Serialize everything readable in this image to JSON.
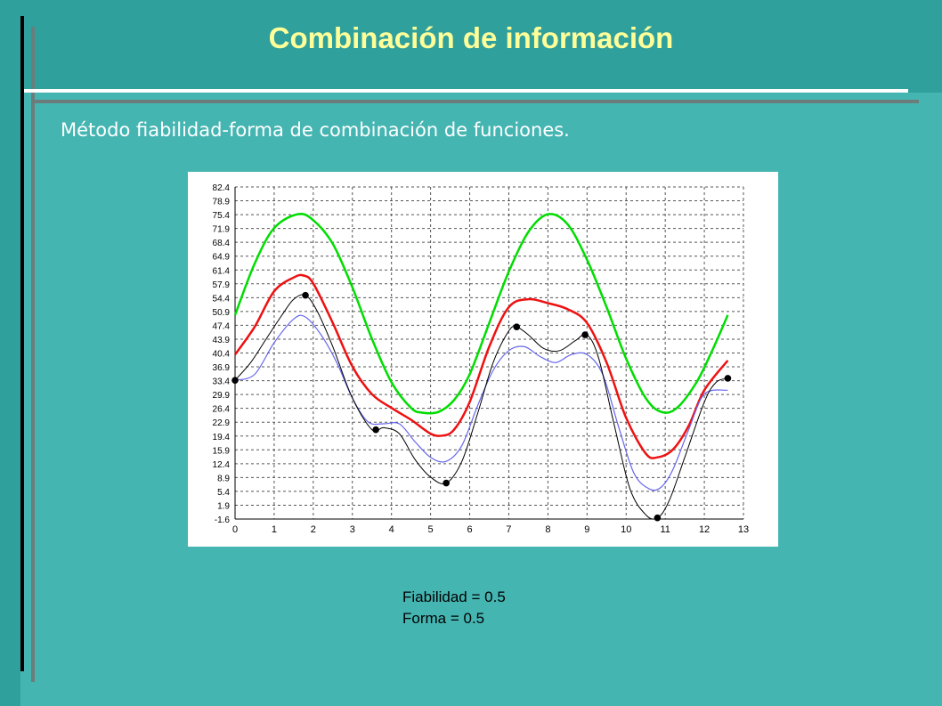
{
  "slide": {
    "title": "Combinación de información",
    "subtitle": "Método fiabilidad-forma de combinación de funciones."
  },
  "params": {
    "line1": "Fiabilidad = 0.5",
    "line2": "Forma = 0.5"
  },
  "colors": {
    "background": "#45b5b2",
    "header": "#30a09d",
    "title": "#ffff99",
    "green_series": "#00dd00",
    "red_series": "#ee1111",
    "blue_series": "#6666ee",
    "black_series": "#000000"
  },
  "chart_data": {
    "type": "line",
    "title": "",
    "xlabel": "",
    "ylabel": "",
    "xlim": [
      0,
      13
    ],
    "ylim": [
      -1.6,
      82.4
    ],
    "grid": true,
    "x_ticks": [
      "0",
      "1",
      "2",
      "3",
      "4",
      "5",
      "6",
      "7",
      "8",
      "9",
      "10",
      "11",
      "12",
      "13"
    ],
    "y_ticks": [
      "82.4",
      "78.9",
      "75.4",
      "71.9",
      "68.4",
      "64.9",
      "61.4",
      "57.9",
      "54.4",
      "50.9",
      "47.4",
      "43.9",
      "40.4",
      "36.9",
      "33.4",
      "29.9",
      "26.4",
      "22.9",
      "19.4",
      "15.9",
      "12.4",
      "8.9",
      "5.4",
      "1.9",
      "-1.6"
    ],
    "series": [
      {
        "color": "#00dd00",
        "x": [
          0,
          0.5,
          1,
          1.6,
          2,
          2.5,
          3,
          3.5,
          4,
          4.5,
          4.8,
          5.2,
          5.6,
          6,
          6.5,
          7,
          7.5,
          8,
          8.5,
          9,
          9.5,
          10,
          10.5,
          10.9,
          11.3,
          11.8,
          12.2,
          12.6
        ],
        "y": [
          50,
          63,
          72,
          75.5,
          74,
          68,
          57,
          44,
          33,
          26.5,
          25.3,
          25.5,
          28.5,
          35,
          48,
          61,
          71,
          75.5,
          73,
          64,
          52,
          39,
          29,
          25.5,
          26.5,
          33,
          41,
          50
        ]
      },
      {
        "color": "#ee1111",
        "x": [
          0,
          0.5,
          1,
          1.5,
          1.75,
          2,
          2.5,
          3,
          3.5,
          4,
          4.5,
          5,
          5.3,
          5.6,
          6,
          6.5,
          7,
          7.5,
          8,
          8.5,
          9,
          9.5,
          10,
          10.5,
          10.8,
          11.2,
          11.6,
          12,
          12.6
        ],
        "y": [
          40,
          47,
          56,
          59.5,
          60,
          58,
          48,
          37,
          30,
          26.5,
          23.5,
          20,
          19.5,
          21,
          28,
          42,
          52,
          54,
          53,
          51.5,
          48,
          38,
          24,
          15,
          14,
          16,
          22,
          31,
          38.5
        ]
      },
      {
        "color": "#6666ee",
        "x": [
          0,
          0.5,
          1,
          1.5,
          1.8,
          2.2,
          2.6,
          3,
          3.4,
          3.8,
          4.2,
          4.6,
          5,
          5.4,
          5.8,
          6.2,
          6.6,
          7,
          7.4,
          7.8,
          8.2,
          8.6,
          9,
          9.4,
          9.8,
          10.2,
          10.6,
          10.9,
          11.2,
          11.6,
          12,
          12.6
        ],
        "y": [
          33.5,
          35,
          43,
          49,
          49.5,
          45,
          38,
          29,
          23,
          22.5,
          22.5,
          18,
          14,
          13,
          17,
          27,
          36,
          41,
          42,
          39.5,
          38,
          40,
          40,
          35,
          22,
          10,
          6,
          6.5,
          11,
          21,
          30,
          31
        ]
      },
      {
        "color": "#000000",
        "x": [
          0,
          0.4,
          0.8,
          1.2,
          1.5,
          1.8,
          2.1,
          2.5,
          3,
          3.5,
          3.8,
          4.2,
          4.6,
          5,
          5.4,
          5.8,
          6.2,
          6.6,
          7,
          7.2,
          7.5,
          7.9,
          8.3,
          8.7,
          9,
          9.3,
          9.7,
          10.1,
          10.5,
          10.8,
          11.1,
          11.5,
          12,
          12.3,
          12.6
        ],
        "y": [
          33.5,
          38,
          44,
          50,
          54,
          55,
          51,
          42,
          29,
          21,
          21.5,
          20,
          13.5,
          9,
          7.5,
          13,
          25,
          38,
          46,
          47,
          45,
          41.5,
          41,
          43.5,
          45,
          39,
          22,
          6,
          -0.5,
          -1.3,
          3,
          14,
          28,
          33,
          34
        ]
      }
    ],
    "points": {
      "color": "#000000",
      "x": [
        0,
        1.8,
        3.6,
        5.4,
        7.2,
        8.95,
        10.8,
        12.6
      ],
      "y": [
        33.5,
        55,
        21,
        7.5,
        47,
        45,
        -1.3,
        34
      ]
    }
  }
}
